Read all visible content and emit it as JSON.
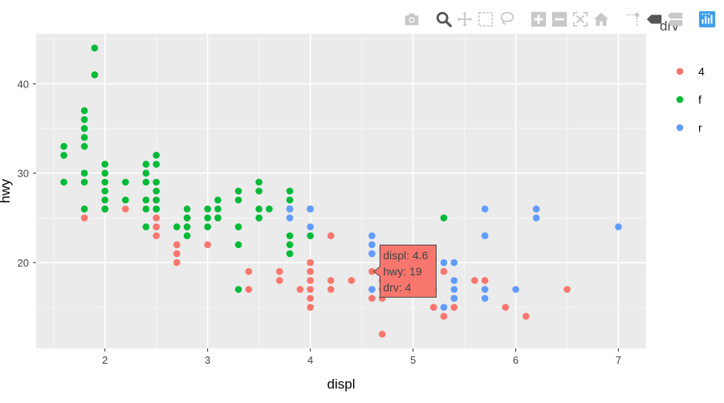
{
  "modebar": {
    "buttons": [
      {
        "name": "camera-icon",
        "color": "#c8c8c8"
      },
      {
        "name": "zoom-icon",
        "color": "#555555"
      },
      {
        "name": "pan-icon",
        "color": "#c8c8c8"
      },
      {
        "name": "box-select-icon",
        "color": "#c8c8c8"
      },
      {
        "name": "lasso-select-icon",
        "color": "#c8c8c8"
      },
      {
        "name": "zoom-in-icon",
        "color": "#c8c8c8"
      },
      {
        "name": "zoom-out-icon",
        "color": "#c8c8c8"
      },
      {
        "name": "autoscale-icon",
        "color": "#c8c8c8"
      },
      {
        "name": "reset-axes-icon",
        "color": "#c8c8c8"
      },
      {
        "name": "spike-lines-icon",
        "color": "#c8c8c8"
      },
      {
        "name": "hover-closest-icon",
        "color": "#555555"
      },
      {
        "name": "hover-compare-icon",
        "color": "#c8c8c8"
      },
      {
        "name": "plotly-logo-icon",
        "color": "#3f4f75"
      }
    ]
  },
  "hover": {
    "lines": [
      "displ: 4.6",
      "hwy: 19",
      "drv: 4"
    ],
    "x": 4.6,
    "y": 19,
    "color": "#f8766d"
  },
  "chart_data": {
    "type": "scatter",
    "title": "",
    "xlabel": "displ",
    "ylabel": "hwy",
    "xlim": [
      1.33,
      7.27
    ],
    "ylim": [
      10.4,
      45.6
    ],
    "xticks": [
      2,
      3,
      4,
      5,
      6,
      7
    ],
    "yticks": [
      20,
      30,
      40
    ],
    "grid": true,
    "background": "#ebebeb",
    "legend_position": "right",
    "legend_title": "drv",
    "series": [
      {
        "name": "4",
        "color": "#f8766d",
        "x": [
          1.8,
          1.8,
          2.2,
          2.5,
          2.5,
          2.5,
          2.5,
          2.7,
          2.7,
          2.7,
          2.8,
          2.8,
          3.0,
          3.1,
          3.4,
          3.4,
          3.7,
          3.7,
          3.9,
          4.0,
          4.0,
          4.0,
          4.0,
          4.0,
          4.0,
          4.2,
          4.2,
          4.2,
          4.4,
          4.6,
          4.6,
          4.6,
          4.7,
          4.7,
          4.7,
          4.7,
          5.2,
          5.2,
          5.3,
          5.3,
          5.4,
          5.4,
          5.6,
          5.7,
          5.7,
          5.9,
          6.1,
          6.5
        ],
        "y": [
          26,
          25,
          26,
          27,
          25,
          24,
          23,
          22,
          21,
          20,
          25,
          24,
          22,
          25,
          19,
          17,
          19,
          18,
          17,
          20,
          19,
          18,
          17,
          16,
          15,
          23,
          18,
          17,
          18,
          19,
          17,
          16,
          18,
          17,
          16,
          12,
          17,
          15,
          19,
          14,
          16,
          15,
          18,
          18,
          17,
          15,
          14,
          17
        ]
      },
      {
        "name": "f",
        "color": "#00ba38",
        "x": [
          1.6,
          1.6,
          1.6,
          1.8,
          1.8,
          1.8,
          1.8,
          1.8,
          1.8,
          1.8,
          1.8,
          1.9,
          1.9,
          2.0,
          2.0,
          2.0,
          2.0,
          2.0,
          2.0,
          2.0,
          2.2,
          2.2,
          2.4,
          2.4,
          2.4,
          2.4,
          2.4,
          2.4,
          2.5,
          2.5,
          2.5,
          2.5,
          2.5,
          2.5,
          2.5,
          2.7,
          2.8,
          2.8,
          2.8,
          2.8,
          3.0,
          3.0,
          3.0,
          3.1,
          3.1,
          3.1,
          3.3,
          3.3,
          3.3,
          3.3,
          3.3,
          3.5,
          3.5,
          3.5,
          3.5,
          3.6,
          3.8,
          3.8,
          3.8,
          3.8,
          3.8,
          3.8,
          4.0,
          4.0,
          5.3
        ],
        "y": [
          33,
          32,
          29,
          37,
          36,
          35,
          34,
          33,
          30,
          29,
          26,
          44,
          41,
          31,
          30,
          29,
          28,
          27,
          26,
          26,
          29,
          27,
          31,
          30,
          29,
          27,
          26,
          24,
          32,
          31,
          29,
          28,
          27,
          26,
          26,
          24,
          26,
          25,
          24,
          23,
          26,
          25,
          24,
          27,
          26,
          25,
          28,
          27,
          24,
          22,
          17,
          29,
          28,
          26,
          25,
          26,
          28,
          27,
          23,
          22,
          21,
          26,
          26,
          23,
          25
        ]
      },
      {
        "name": "r",
        "color": "#619cff",
        "x": [
          3.8,
          3.8,
          4.0,
          4.0,
          4.6,
          4.6,
          4.6,
          4.6,
          5.3,
          5.3,
          5.4,
          5.4,
          5.4,
          5.4,
          5.7,
          5.7,
          5.7,
          5.7,
          6.0,
          6.2,
          6.2,
          7.0
        ],
        "y": [
          26,
          25,
          26,
          24,
          23,
          22,
          21,
          17,
          20,
          15,
          20,
          18,
          17,
          16,
          26,
          23,
          17,
          16,
          17,
          26,
          25,
          24
        ]
      }
    ]
  }
}
